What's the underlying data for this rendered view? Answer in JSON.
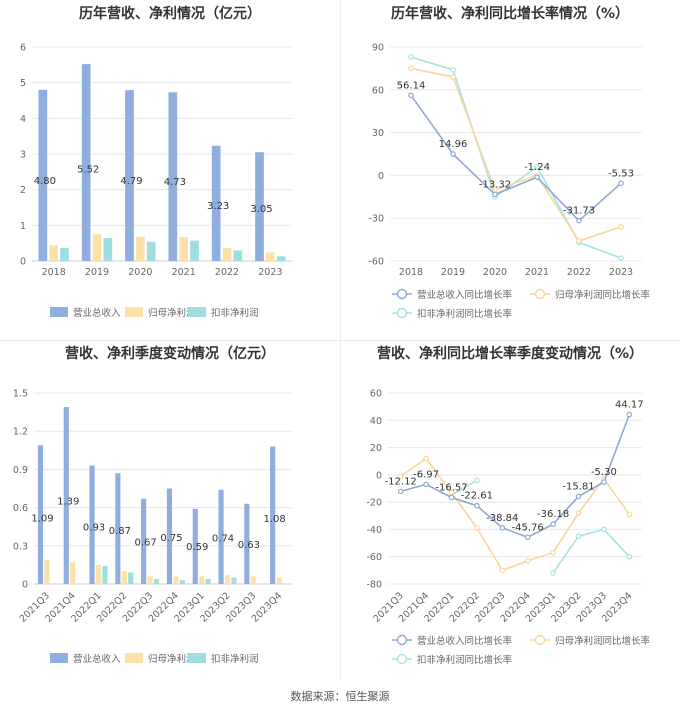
{
  "footer": {
    "source": "数据来源：恒生聚源"
  },
  "colors": {
    "revenue": "#8eaedd",
    "revenue_line": "#8fa8d6",
    "net_profit": "#fde1a9",
    "net_profit_line": "#f8d79c",
    "deducted": "#9edede",
    "deducted_line": "#a8e2e3",
    "grid": "#e8e8e8",
    "axis_text": "#666666",
    "title": "#333333"
  },
  "chart_data": [
    {
      "type": "bar",
      "title": "历年营收、净利情况（亿元）",
      "categories": [
        "2018",
        "2019",
        "2020",
        "2021",
        "2022",
        "2023"
      ],
      "series": [
        {
          "name": "营业总收入",
          "values": [
            4.8,
            5.52,
            4.79,
            4.73,
            3.23,
            3.05
          ],
          "labels": [
            "4.80",
            "5.52",
            "4.79",
            "4.73",
            "3.23",
            "3.05"
          ]
        },
        {
          "name": "归母净利润",
          "values": [
            0.44,
            0.75,
            0.68,
            0.67,
            0.36,
            0.24
          ]
        },
        {
          "name": "扣非净利润",
          "values": [
            0.37,
            0.64,
            0.54,
            0.57,
            0.3,
            0.13
          ]
        }
      ],
      "ylim": [
        0,
        6
      ],
      "yticks": [
        "0",
        "1",
        "2",
        "3",
        "4",
        "5",
        "6"
      ],
      "legend": "bottom",
      "grid": true
    },
    {
      "type": "line",
      "title": "历年营收、净利同比增长率情况（%）",
      "categories": [
        "2018",
        "2019",
        "2020",
        "2021",
        "2022",
        "2023"
      ],
      "series": [
        {
          "name": "营业总收入同比增长率",
          "values": [
            56.14,
            14.96,
            -13.32,
            -1.24,
            -31.73,
            -5.53
          ],
          "labels": [
            "56.14",
            "14.96",
            "-13.32",
            "-1.24",
            "-31.73",
            "-5.53"
          ]
        },
        {
          "name": "归母净利润同比增长率",
          "values": [
            75,
            69,
            -10,
            0,
            -46,
            -36
          ]
        },
        {
          "name": "扣非净利润同比增长率",
          "values": [
            83,
            74,
            -15,
            6,
            -47,
            -58
          ]
        }
      ],
      "ylim": [
        -60,
        90
      ],
      "yticks": [
        "-60",
        "-30",
        "0",
        "30",
        "60",
        "90"
      ],
      "legend": "bottom",
      "grid": true
    },
    {
      "type": "bar",
      "title": "营收、净利季度变动情况（亿元）",
      "categories": [
        "2021Q3",
        "2021Q4",
        "2022Q1",
        "2022Q2",
        "2022Q3",
        "2022Q4",
        "2023Q1",
        "2023Q2",
        "2023Q3",
        "2023Q4"
      ],
      "series": [
        {
          "name": "营业总收入",
          "values": [
            1.09,
            1.39,
            0.93,
            0.87,
            0.67,
            0.75,
            0.59,
            0.74,
            0.63,
            1.08
          ],
          "labels": [
            "1.09",
            "1.39",
            "0.93",
            "0.87",
            "0.67",
            "0.75",
            "0.59",
            "0.74",
            "0.63",
            "1.08"
          ]
        },
        {
          "name": "归母净利润",
          "values": [
            0.19,
            0.17,
            0.15,
            0.1,
            0.06,
            0.06,
            0.06,
            0.07,
            0.06,
            0.05
          ]
        },
        {
          "name": "扣非净利润",
          "values": [
            0.0,
            0.0,
            0.14,
            0.09,
            0.04,
            0.03,
            0.04,
            0.05,
            0.0,
            0.0
          ]
        }
      ],
      "ylim": [
        0,
        1.5
      ],
      "yticks": [
        "0",
        "0.3",
        "0.6",
        "0.9",
        "1.2",
        "1.5"
      ],
      "legend": "bottom",
      "grid": true
    },
    {
      "type": "line",
      "title": "营收、净利同比增长率季度变动情况（%）",
      "categories": [
        "2021Q3",
        "2021Q4",
        "2022Q1",
        "2022Q2",
        "2022Q3",
        "2022Q4",
        "2023Q1",
        "2023Q2",
        "2023Q3",
        "2023Q4"
      ],
      "series": [
        {
          "name": "营业总收入同比增长率",
          "values": [
            -12.12,
            -6.97,
            -16.57,
            -22.61,
            -38.84,
            -45.76,
            -36.18,
            -15.81,
            -5.3,
            44.17
          ],
          "labels": [
            "-12.12",
            "-6.97",
            "-16.57",
            "-22.61",
            "-38.84",
            "-45.76",
            "-36.18",
            "-15.81",
            "-5.30",
            "44.17"
          ]
        },
        {
          "name": "归母净利润同比增长率",
          "values": [
            -1,
            12,
            -13,
            -39,
            -70,
            -63,
            -57,
            -28,
            -3,
            -29
          ]
        },
        {
          "name": "扣非净利润同比增长率",
          "values": [
            null,
            null,
            -15,
            -4,
            null,
            null,
            -72,
            -45,
            -40,
            -60
          ]
        }
      ],
      "ylim": [
        -80,
        60
      ],
      "yticks": [
        "-80",
        "-60",
        "-40",
        "-20",
        "0",
        "20",
        "40",
        "60"
      ],
      "legend": "bottom",
      "grid": true
    }
  ]
}
